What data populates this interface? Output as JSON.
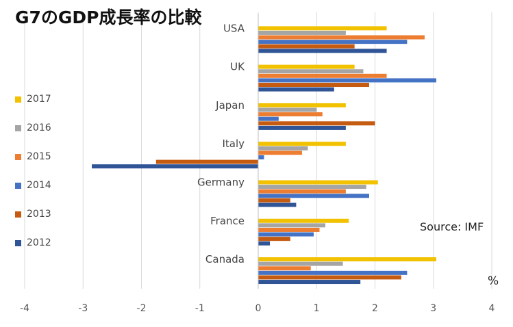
{
  "chart_data": {
    "type": "bar",
    "orientation": "horizontal",
    "title": "G7のGDP成長率の比較",
    "source": "Source: IMF",
    "unit": "%",
    "categories": [
      "USA",
      "UK",
      "Japan",
      "Italy",
      "Germany",
      "France",
      "Canada"
    ],
    "series": [
      {
        "name": "2017",
        "color": "#F2C200",
        "values": [
          2.2,
          1.65,
          1.5,
          1.5,
          2.05,
          1.55,
          3.05
        ]
      },
      {
        "name": "2016",
        "color": "#A5A5A5",
        "values": [
          1.5,
          1.8,
          1.0,
          0.85,
          1.85,
          1.15,
          1.45
        ]
      },
      {
        "name": "2015",
        "color": "#ED7D31",
        "values": [
          2.85,
          2.2,
          1.1,
          0.75,
          1.5,
          1.05,
          0.9
        ]
      },
      {
        "name": "2014",
        "color": "#4472C4",
        "values": [
          2.55,
          3.05,
          0.35,
          0.1,
          1.9,
          0.95,
          2.55
        ]
      },
      {
        "name": "2013",
        "color": "#C55A11",
        "values": [
          1.65,
          1.9,
          2.0,
          -1.75,
          0.55,
          0.55,
          2.45
        ]
      },
      {
        "name": "2012",
        "color": "#2F5597",
        "values": [
          2.2,
          1.3,
          1.5,
          -2.85,
          0.65,
          0.2,
          1.75
        ]
      }
    ],
    "x_ticks": [
      "-4",
      "-3",
      "-2",
      "-1",
      "0",
      "1",
      "2",
      "3",
      "4"
    ],
    "xlim": [
      -4,
      4
    ],
    "grid": "vertical",
    "legend_position": "left"
  },
  "legend": [
    {
      "label": "2017",
      "color": "#F2C200"
    },
    {
      "label": "2016",
      "color": "#A5A5A5"
    },
    {
      "label": "2015",
      "color": "#ED7D31"
    },
    {
      "label": "2014",
      "color": "#4472C4"
    },
    {
      "label": "2013",
      "color": "#C55A11"
    },
    {
      "label": "2012",
      "color": "#2F5597"
    }
  ]
}
